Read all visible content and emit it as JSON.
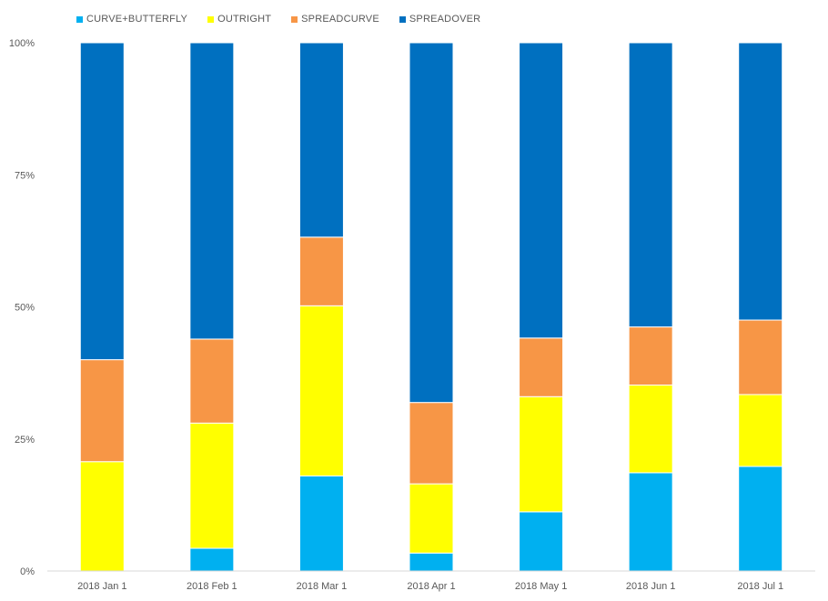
{
  "chart_data": {
    "type": "bar",
    "stacked": true,
    "percent_stacked": true,
    "categories": [
      "2018 Jan 1",
      "2018 Feb 1",
      "2018 Mar 1",
      "2018 Apr 1",
      "2018 May 1",
      "2018 Jun 1",
      "2018 Jul 1"
    ],
    "series": [
      {
        "name": "CURVE+BUTTERFLY",
        "color": "#00b0f0",
        "values": [
          0,
          4.3,
          18.0,
          3.4,
          11.2,
          18.6,
          19.8
        ]
      },
      {
        "name": "OUTRIGHT",
        "color": "#ffff00",
        "values": [
          20.7,
          23.7,
          32.2,
          13.1,
          21.8,
          16.6,
          13.6
        ]
      },
      {
        "name": "SPREADCURVE",
        "color": "#f79646",
        "values": [
          19.3,
          15.9,
          13.0,
          15.4,
          11.1,
          11.0,
          14.1
        ]
      },
      {
        "name": "SPREADOVER",
        "color": "#0070c0",
        "values": [
          60.0,
          56.1,
          36.8,
          68.1,
          55.9,
          53.8,
          52.5
        ]
      }
    ],
    "y_ticks": [
      "0%",
      "25%",
      "50%",
      "75%",
      "100%"
    ],
    "ylim": [
      0,
      100
    ],
    "title": "",
    "xlabel": "",
    "ylabel": "",
    "legend_position": "top-left",
    "grid": false
  }
}
